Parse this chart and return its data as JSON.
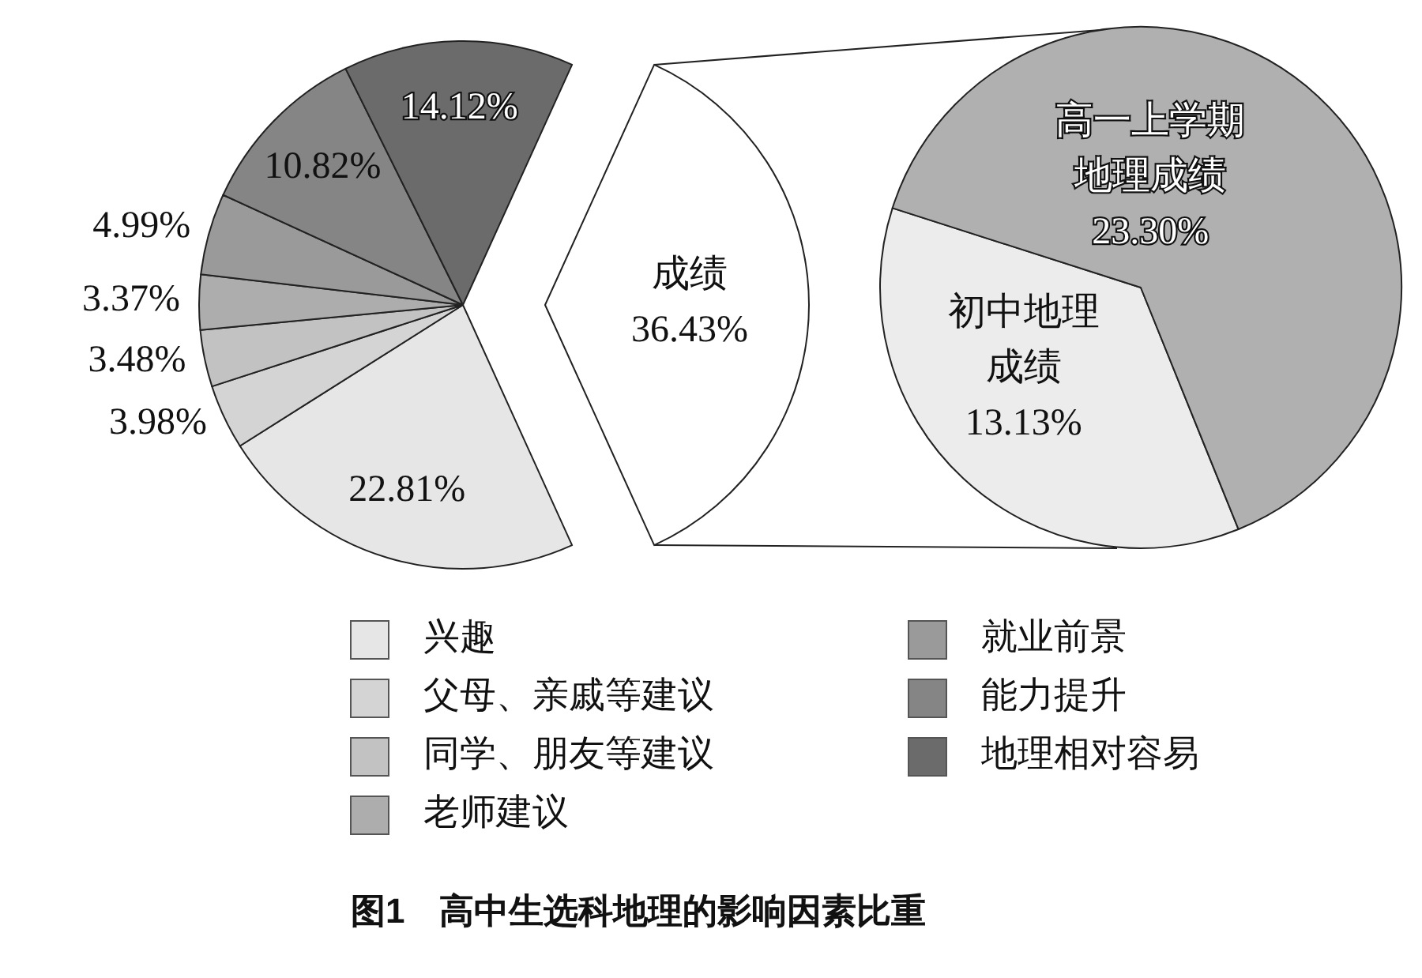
{
  "chart_data": [
    {
      "type": "pie",
      "title": "图1　高中生选科地理的影响因素比重",
      "legend": "bottom",
      "categories": [
        "兴趣",
        "父母、亲戚等建议",
        "同学、朋友等建议",
        "老师建议",
        "就业前景",
        "能力提升",
        "地理相对容易",
        "成绩"
      ],
      "values": [
        22.81,
        3.98,
        3.48,
        3.37,
        4.99,
        10.82,
        14.12,
        36.43
      ],
      "colors": [
        "#e6e6e6",
        "#d4d4d4",
        "#c2c2c2",
        "#adadad",
        "#9a9a9a",
        "#858585",
        "#6b6b6b",
        "#ffffff"
      ],
      "value_labels": [
        "22.81%",
        "3.98%",
        "3.48%",
        "3.37%",
        "4.99%",
        "10.82%",
        "14.12%",
        "36.43%"
      ]
    },
    {
      "type": "pie",
      "categories": [
        "初中地理成绩",
        "高一上学期地理成绩"
      ],
      "values": [
        13.13,
        23.3
      ],
      "colors": [
        "#ececec",
        "#b0b0b0"
      ],
      "value_labels": [
        "13.13%",
        "23.30%"
      ]
    }
  ]
}
